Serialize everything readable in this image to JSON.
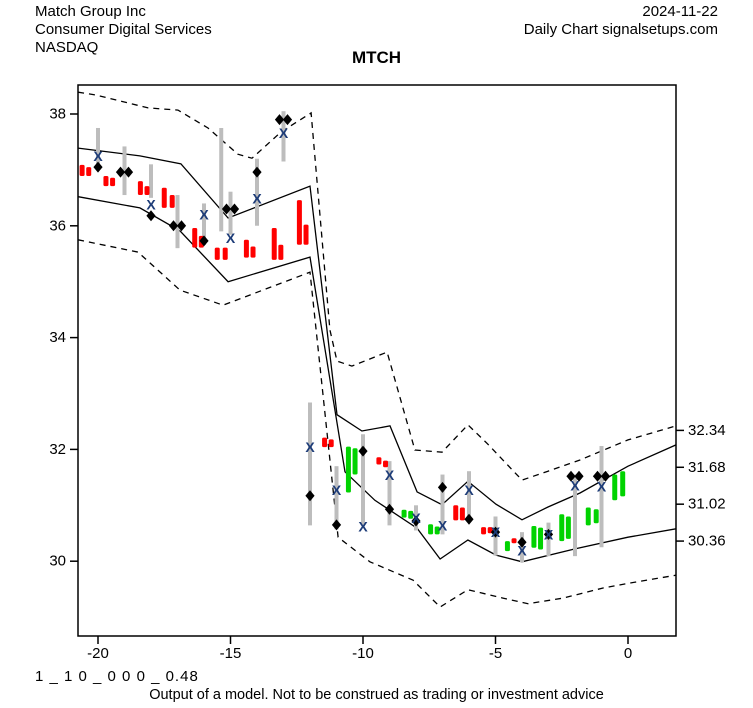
{
  "header": {
    "company": "Match Group Inc",
    "sector": "Consumer Digital Services",
    "exchange": "NASDAQ",
    "date": "2024-11-22",
    "chart_source": "Daily Chart signalsetups.com"
  },
  "title": "MTCH",
  "footer": {
    "model_params": "1 _ 1 0 _ 0 0 0 _ 0.48",
    "disclaimer": "Output of a model. Not to be construed as trading or investment advice"
  },
  "colors": {
    "up_candle": "#00D300",
    "down_candle": "#FF0000",
    "wick": "#BDBDBD",
    "band_line": "#000000",
    "x_marker": "#1d3c78",
    "diamond_marker": "#000000",
    "axis": "#000000"
  },
  "chart_data": {
    "type": "candlestick",
    "title": "MTCH",
    "x_axis_ticks": [
      -20,
      -15,
      -10,
      -5,
      0
    ],
    "y_axis_ticks_left": [
      38,
      36,
      34,
      32,
      30
    ],
    "y_axis_ticks_right": [
      32.34,
      31.68,
      31.02,
      30.36
    ],
    "x_range": [
      -20.75,
      1.81
    ],
    "y_range": [
      28.66,
      38.52
    ],
    "grid": false,
    "candles": [
      {
        "x": -20.6,
        "lo": 36.89,
        "hi": 37.09,
        "dir": "down"
      },
      {
        "x": -20.35,
        "lo": 36.89,
        "hi": 37.05,
        "dir": "down"
      },
      {
        "x": -19.7,
        "lo": 36.71,
        "hi": 36.89,
        "dir": "down"
      },
      {
        "x": -19.45,
        "lo": 36.71,
        "hi": 36.86,
        "dir": "down"
      },
      {
        "x": -18.4,
        "lo": 36.55,
        "hi": 36.8,
        "dir": "down"
      },
      {
        "x": -18.15,
        "lo": 36.55,
        "hi": 36.71,
        "dir": "down"
      },
      {
        "x": -17.5,
        "lo": 36.32,
        "hi": 36.68,
        "dir": "down"
      },
      {
        "x": -17.2,
        "lo": 36.32,
        "hi": 36.55,
        "dir": "down"
      },
      {
        "x": -16.35,
        "lo": 35.61,
        "hi": 35.96,
        "dir": "down"
      },
      {
        "x": -16.1,
        "lo": 35.61,
        "hi": 35.82,
        "dir": "down"
      },
      {
        "x": -15.5,
        "lo": 35.39,
        "hi": 35.61,
        "dir": "down"
      },
      {
        "x": -15.2,
        "lo": 35.39,
        "hi": 35.61,
        "dir": "down"
      },
      {
        "x": -14.4,
        "lo": 35.43,
        "hi": 35.75,
        "dir": "down"
      },
      {
        "x": -14.15,
        "lo": 35.43,
        "hi": 35.63,
        "dir": "down"
      },
      {
        "x": -13.35,
        "lo": 35.39,
        "hi": 35.96,
        "dir": "down"
      },
      {
        "x": -13.1,
        "lo": 35.39,
        "hi": 35.66,
        "dir": "down"
      },
      {
        "x": -12.4,
        "lo": 35.66,
        "hi": 36.46,
        "dir": "down"
      },
      {
        "x": -12.15,
        "lo": 35.66,
        "hi": 36.02,
        "dir": "down"
      },
      {
        "x": -11.45,
        "lo": 32.04,
        "hi": 32.21,
        "dir": "down"
      },
      {
        "x": -11.2,
        "lo": 32.04,
        "hi": 32.18,
        "dir": "down"
      },
      {
        "x": -10.55,
        "lo": 31.23,
        "hi": 32.05,
        "dir": "up"
      },
      {
        "x": -10.3,
        "lo": 31.55,
        "hi": 32.02,
        "dir": "up"
      },
      {
        "x": -9.4,
        "lo": 31.73,
        "hi": 31.86,
        "dir": "down"
      },
      {
        "x": -9.15,
        "lo": 31.68,
        "hi": 31.8,
        "dir": "down"
      },
      {
        "x": -8.45,
        "lo": 30.78,
        "hi": 30.92,
        "dir": "up"
      },
      {
        "x": -8.2,
        "lo": 30.76,
        "hi": 30.9,
        "dir": "up"
      },
      {
        "x": -7.45,
        "lo": 30.48,
        "hi": 30.66,
        "dir": "up"
      },
      {
        "x": -7.2,
        "lo": 30.48,
        "hi": 30.62,
        "dir": "up"
      },
      {
        "x": -6.5,
        "lo": 30.73,
        "hi": 31.0,
        "dir": "down"
      },
      {
        "x": -6.25,
        "lo": 30.73,
        "hi": 30.96,
        "dir": "down"
      },
      {
        "x": -5.45,
        "lo": 30.48,
        "hi": 30.61,
        "dir": "down"
      },
      {
        "x": -5.2,
        "lo": 30.5,
        "hi": 30.61,
        "dir": "down"
      },
      {
        "x": -4.55,
        "lo": 30.18,
        "hi": 30.36,
        "dir": "up"
      },
      {
        "x": -4.3,
        "lo": 30.32,
        "hi": 30.41,
        "dir": "down"
      },
      {
        "x": -3.55,
        "lo": 30.24,
        "hi": 30.63,
        "dir": "up"
      },
      {
        "x": -3.3,
        "lo": 30.21,
        "hi": 30.6,
        "dir": "up"
      },
      {
        "x": -2.5,
        "lo": 30.36,
        "hi": 30.84,
        "dir": "up"
      },
      {
        "x": -2.25,
        "lo": 30.4,
        "hi": 30.8,
        "dir": "up"
      },
      {
        "x": -1.5,
        "lo": 30.64,
        "hi": 30.96,
        "dir": "up"
      },
      {
        "x": -1.2,
        "lo": 30.68,
        "hi": 30.93,
        "dir": "up"
      },
      {
        "x": -0.5,
        "lo": 31.09,
        "hi": 31.55,
        "dir": "up"
      },
      {
        "x": -0.2,
        "lo": 31.16,
        "hi": 31.61,
        "dir": "up"
      }
    ],
    "bars": [
      {
        "x": -20,
        "wick": [
          37.05,
          37.75
        ],
        "diamond": 37.05,
        "diamond_pair": false,
        "x_mark": 37.25
      },
      {
        "x": -19,
        "wick": [
          36.55,
          37.42
        ],
        "diamond": 36.96,
        "diamond_pair": true,
        "x_mark": null
      },
      {
        "x": -18,
        "wick": [
          36.5,
          37.1
        ],
        "diamond": 36.18,
        "diamond_pair": false,
        "x_mark": 36.38
      },
      {
        "x": -17,
        "wick": [
          35.6,
          36.55
        ],
        "diamond": 36.0,
        "diamond_pair": true,
        "x_mark": null
      },
      {
        "x": -16,
        "wick": [
          35.66,
          36.4
        ],
        "diamond": 35.73,
        "diamond_pair": false,
        "x_mark": 36.2
      },
      {
        "x": -15.35,
        "wick": [
          35.9,
          37.75
        ],
        "diamond": null,
        "diamond_pair": false,
        "x_mark": null
      },
      {
        "x": -15,
        "wick": [
          35.84,
          36.61
        ],
        "diamond": 36.3,
        "diamond_pair": true,
        "x_mark": 35.78
      },
      {
        "x": -14,
        "wick": [
          36.0,
          37.2
        ],
        "diamond": 36.96,
        "diamond_pair": false,
        "x_mark": 36.49
      },
      {
        "x": -13,
        "wick": [
          37.15,
          38.05
        ],
        "diamond": 37.9,
        "diamond_pair": true,
        "x_mark": 37.66
      },
      {
        "x": -12,
        "wick": [
          30.64,
          32.84
        ],
        "diamond": 31.17,
        "diamond_pair": false,
        "x_mark": 32.04
      },
      {
        "x": -11,
        "wick": [
          30.57,
          31.7
        ],
        "diamond": 30.65,
        "diamond_pair": false,
        "x_mark": 31.27
      },
      {
        "x": -10,
        "wick": [
          30.64,
          32.27
        ],
        "diamond": 31.97,
        "diamond_pair": false,
        "x_mark": 30.62
      },
      {
        "x": -9,
        "wick": [
          30.64,
          31.79
        ],
        "diamond": 30.93,
        "diamond_pair": false,
        "x_mark": 31.54
      },
      {
        "x": -8,
        "wick": [
          30.55,
          31.0
        ],
        "diamond": 30.72,
        "diamond_pair": false,
        "x_mark": 30.77
      },
      {
        "x": -7,
        "wick": [
          30.48,
          31.55
        ],
        "diamond": 31.32,
        "diamond_pair": false,
        "x_mark": 30.64
      },
      {
        "x": -6,
        "wick": [
          30.8,
          31.61
        ],
        "diamond": 30.75,
        "diamond_pair": false,
        "x_mark": 31.27
      },
      {
        "x": -5,
        "wick": [
          30.1,
          30.8
        ],
        "diamond": 30.52,
        "diamond_pair": false,
        "x_mark": 30.52
      },
      {
        "x": -4,
        "wick": [
          29.98,
          30.52
        ],
        "diamond": 30.34,
        "diamond_pair": false,
        "x_mark": 30.19
      },
      {
        "x": -3,
        "wick": [
          30.09,
          30.69
        ],
        "diamond": 30.48,
        "diamond_pair": false,
        "x_mark": 30.48
      },
      {
        "x": -2,
        "wick": [
          30.09,
          31.55
        ],
        "diamond": 31.52,
        "diamond_pair": true,
        "x_mark": 31.35
      },
      {
        "x": -1,
        "wick": [
          30.25,
          32.06
        ],
        "diamond": 31.52,
        "diamond_pair": true,
        "x_mark": 31.34
      }
    ],
    "lines": {
      "upper_dashed": [
        [
          -20.75,
          38.39
        ],
        [
          -20.08,
          38.34
        ],
        [
          -18.11,
          38.11
        ],
        [
          -16.98,
          38.07
        ],
        [
          -15.85,
          37.75
        ],
        [
          -14.72,
          37.28
        ],
        [
          -14.19,
          37.21
        ],
        [
          -13.09,
          37.68
        ],
        [
          -11.96,
          38.02
        ],
        [
          -11.25,
          34.14
        ],
        [
          -10.98,
          33.58
        ],
        [
          -10.42,
          33.49
        ],
        [
          -9.09,
          33.74
        ],
        [
          -8.04,
          31.99
        ],
        [
          -7.02,
          31.95
        ],
        [
          -6.04,
          32.44
        ],
        [
          -5.32,
          32.11
        ],
        [
          -4.0,
          31.45
        ],
        [
          -3.02,
          31.61
        ],
        [
          -1.81,
          31.81
        ],
        [
          0.0,
          32.17
        ],
        [
          1.81,
          32.42
        ]
      ],
      "upper_solid": [
        [
          -20.75,
          37.39
        ],
        [
          -18.42,
          37.25
        ],
        [
          -16.87,
          37.11
        ],
        [
          -15.09,
          36.14
        ],
        [
          -12.0,
          36.71
        ],
        [
          -10.98,
          32.62
        ],
        [
          -10.04,
          32.33
        ],
        [
          -8.98,
          32.42
        ],
        [
          -7.96,
          31.24
        ],
        [
          -7.02,
          31.01
        ],
        [
          -6.04,
          31.43
        ],
        [
          -4.98,
          31.02
        ],
        [
          -4.0,
          30.74
        ],
        [
          -3.02,
          30.97
        ],
        [
          -1.81,
          31.22
        ],
        [
          0.0,
          31.7
        ],
        [
          1.81,
          32.08
        ]
      ],
      "lower_solid": [
        [
          -20.75,
          36.52
        ],
        [
          -18.42,
          36.32
        ],
        [
          -16.91,
          35.91
        ],
        [
          -15.09,
          35.0
        ],
        [
          -12.0,
          35.44
        ],
        [
          -10.68,
          31.6
        ],
        [
          -9.55,
          31.09
        ],
        [
          -7.96,
          30.59
        ],
        [
          -7.09,
          30.04
        ],
        [
          -6.04,
          30.38
        ],
        [
          -4.98,
          30.11
        ],
        [
          -4.0,
          29.99
        ],
        [
          -2.0,
          30.22
        ],
        [
          0.0,
          30.43
        ],
        [
          1.81,
          30.58
        ]
      ],
      "lower_dashed": [
        [
          -20.75,
          35.75
        ],
        [
          -18.49,
          35.53
        ],
        [
          -16.91,
          34.85
        ],
        [
          -15.28,
          34.58
        ],
        [
          -12.0,
          35.17
        ],
        [
          -10.94,
          30.43
        ],
        [
          -9.74,
          29.99
        ],
        [
          -8.11,
          29.66
        ],
        [
          -7.09,
          29.18
        ],
        [
          -6.04,
          29.49
        ],
        [
          -4.72,
          29.34
        ],
        [
          -3.77,
          29.24
        ],
        [
          -2.45,
          29.34
        ],
        [
          -0.94,
          29.52
        ],
        [
          0.08,
          29.61
        ],
        [
          1.81,
          29.75
        ]
      ]
    }
  }
}
